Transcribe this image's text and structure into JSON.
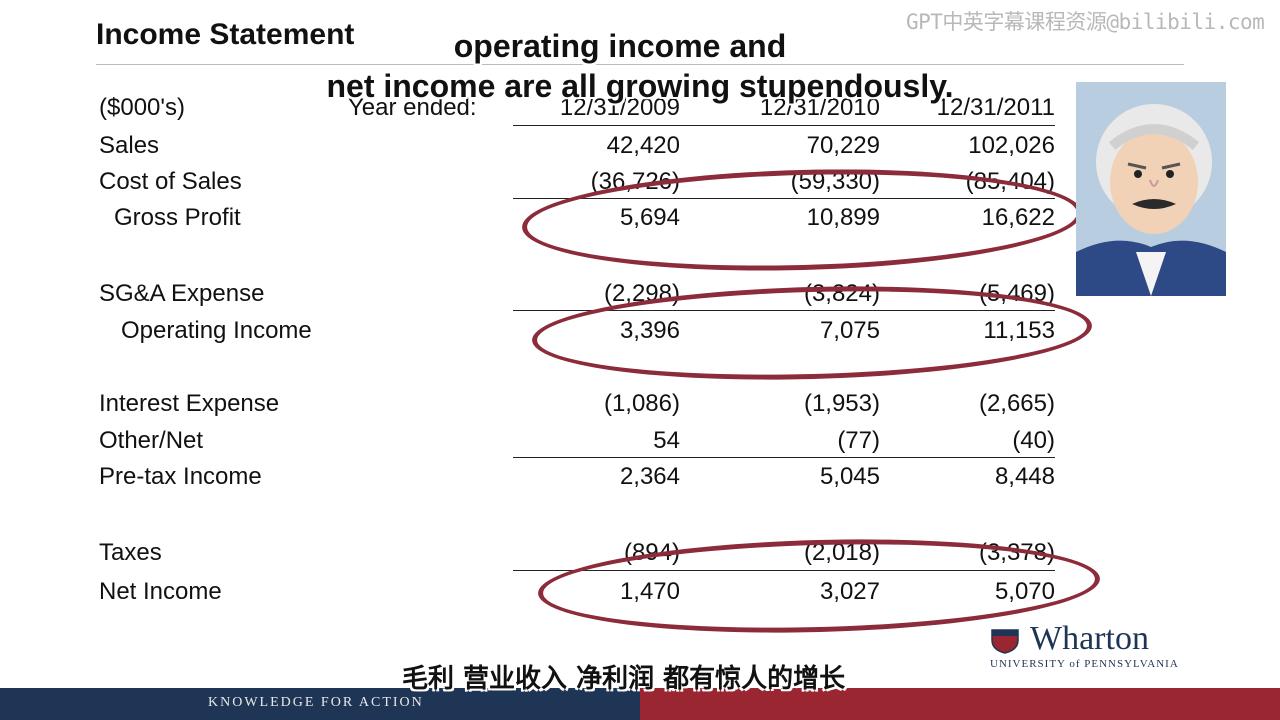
{
  "slide": {
    "title": "Income Statement",
    "watermark": "GPT中英字幕课程资源@bilibili.com",
    "units_label": "($000's)",
    "year_label": "Year ended:",
    "years": [
      "12/31/2009",
      "12/31/2010",
      "12/31/2011"
    ],
    "rows": [
      {
        "label": "Sales",
        "values": [
          "42,420",
          "70,229",
          "102,026"
        ]
      },
      {
        "label": "Cost of Sales",
        "values": [
          "(36,726)",
          "(59,330)",
          "(85,404)"
        ]
      },
      {
        "label": "Gross Profit",
        "values": [
          "5,694",
          "10,899",
          "16,622"
        ]
      },
      {
        "label": "SG&A Expense",
        "values": [
          "(2,298)",
          "(3,824)",
          "(5,469)"
        ]
      },
      {
        "label": "Operating Income",
        "values": [
          "3,396",
          "7,075",
          "11,153"
        ]
      },
      {
        "label": "Interest Expense",
        "values": [
          "(1,086)",
          "(1,953)",
          "(2,665)"
        ]
      },
      {
        "label": "Other/Net",
        "values": [
          "54",
          "(77)",
          "(40)"
        ]
      },
      {
        "label": "Pre-tax Income",
        "values": [
          "2,364",
          "5,045",
          "8,448"
        ]
      },
      {
        "label": "Taxes",
        "values": [
          "(894)",
          "(2,018)",
          "(3,378)"
        ]
      },
      {
        "label": "Net Income",
        "values": [
          "1,470",
          "3,027",
          "5,070"
        ]
      }
    ]
  },
  "captions": {
    "english_line1": "operating income and",
    "english_line2": "net income are all growing stupendously.",
    "chinese": "毛利 营业收入 净利润 都有惊人的增长"
  },
  "branding": {
    "logo_name": "Wharton",
    "logo_sub": "UNIVERSITY of PENNSYLVANIA",
    "tagline": "KNOWLEDGE FOR ACTION"
  },
  "icons": {
    "portrait": "cartoon-professor-avatar",
    "shield": "penn-shield-icon"
  },
  "colors": {
    "oval": "#8c2b3a",
    "footer_navy": "#1f3556",
    "footer_red": "#9a2632"
  }
}
